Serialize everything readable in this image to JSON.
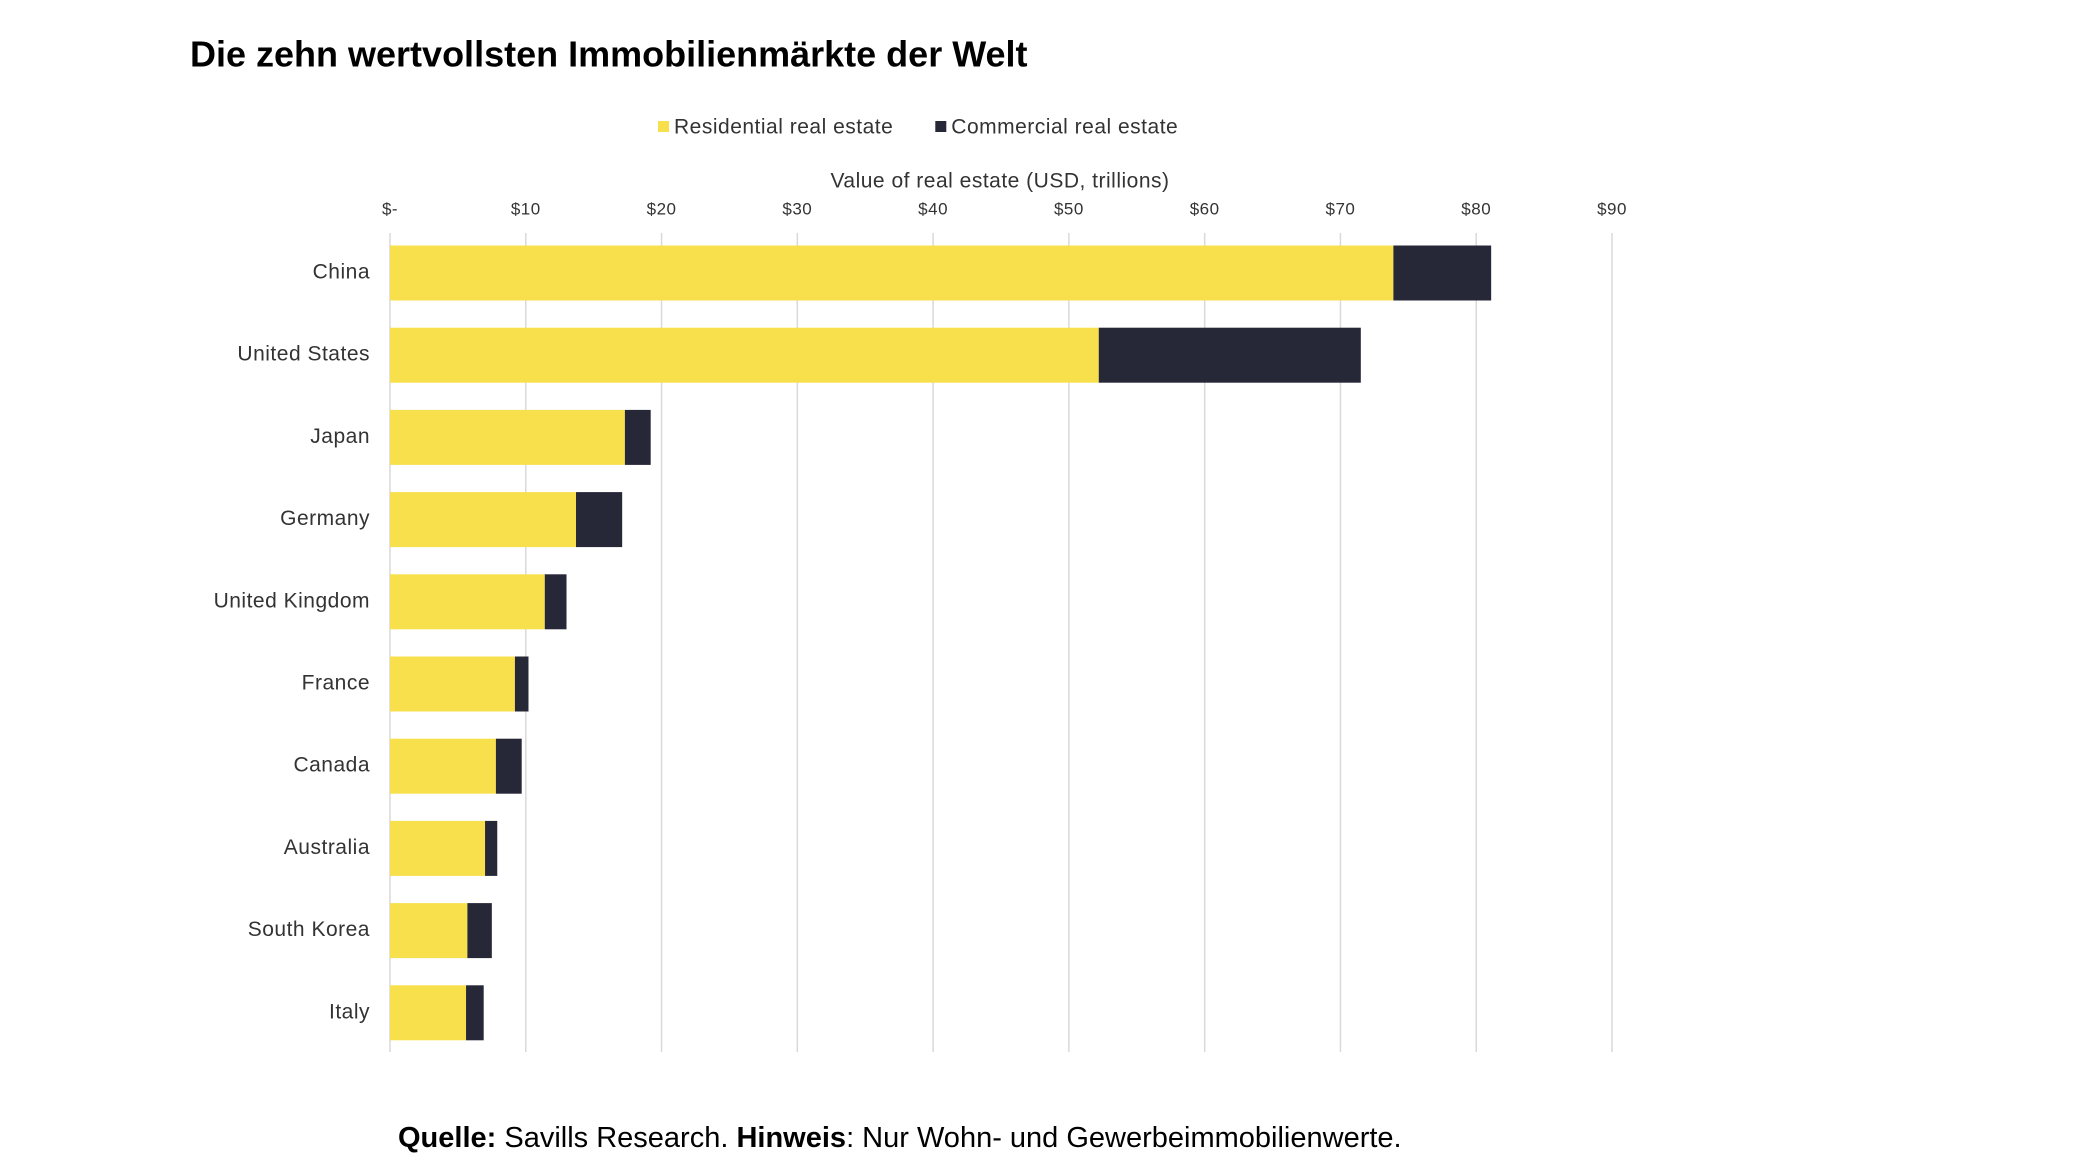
{
  "chart_data": {
    "type": "bar",
    "orientation": "horizontal",
    "stacked": true,
    "title": "Die zehn wertvollsten Immobilienmärkte der Welt",
    "x_label": "Value of real estate (USD, trillions)",
    "categories": [
      "China",
      "United States",
      "Japan",
      "Germany",
      "United Kingdom",
      "France",
      "Canada",
      "Australia",
      "South Korea",
      "Italy"
    ],
    "series": [
      {
        "name": "Residential real estate",
        "color": "#f8e04c",
        "values": [
          73.9,
          52.2,
          17.3,
          13.7,
          11.4,
          9.2,
          7.8,
          7.0,
          5.7,
          5.6
        ]
      },
      {
        "name": "Commercial real estate",
        "color": "#262838",
        "values": [
          7.2,
          19.3,
          1.9,
          3.4,
          1.6,
          1.0,
          1.9,
          0.9,
          1.8,
          1.3
        ]
      }
    ],
    "xlim": [
      0,
      90
    ],
    "xticks": [
      {
        "value": 0,
        "label": "$-"
      },
      {
        "value": 10,
        "label": "$10"
      },
      {
        "value": 20,
        "label": "$20"
      },
      {
        "value": 30,
        "label": "$30"
      },
      {
        "value": 40,
        "label": "$40"
      },
      {
        "value": 50,
        "label": "$50"
      },
      {
        "value": 60,
        "label": "$60"
      },
      {
        "value": 70,
        "label": "$70"
      },
      {
        "value": 80,
        "label": "$80"
      },
      {
        "value": 90,
        "label": "$90"
      }
    ],
    "grid": true,
    "legend": "top",
    "footnote": {
      "source_label": "Quelle:",
      "source_text": " Savills Research. ",
      "note_label": "Hinweis",
      "note_text": ": Nur Wohn- und Gewerbeimmobilienwerte."
    }
  }
}
